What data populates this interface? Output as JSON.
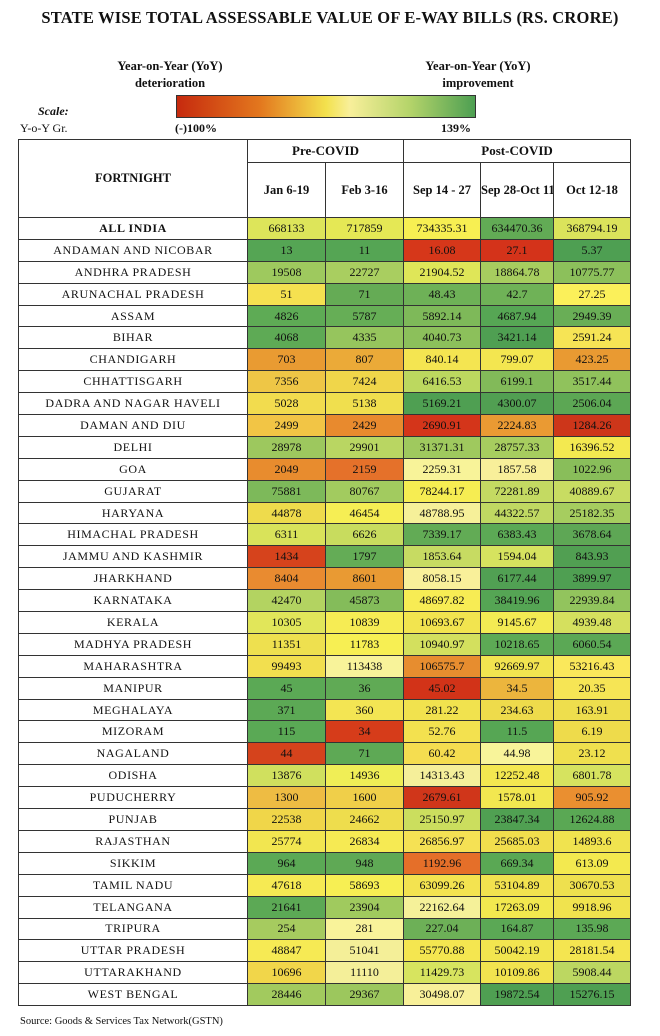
{
  "title": "STATE WISE TOTAL ASSESSABLE VALUE OF E-WAY BILLS (RS. CRORE)",
  "legend": {
    "left_line1": "Year-on-Year (YoY)",
    "left_line2": "deterioration",
    "right_line1": "Year-on-Year (YoY)",
    "right_line2": "improvement",
    "scale": "Scale:",
    "yoy": "Y-o-Y Gr.",
    "min": "(-)100%",
    "max": "139%"
  },
  "table": {
    "groups": [
      "Pre-COVID",
      "Post-COVID"
    ],
    "row_header": "FORTNIGHT",
    "columns": [
      "Jan 6-19",
      "Feb 3-16",
      "Sep 14 - 27",
      "Sep 28-Oct 11",
      "Oct 12-18"
    ],
    "rows": [
      {
        "state": "ALL INDIA",
        "values": [
          "668133",
          "717859",
          "734335.31",
          "634470.36",
          "368794.19"
        ],
        "colors": [
          "#dde55a",
          "#e5e855",
          "#f7ef52",
          "#62ab55",
          "#dbe35b"
        ]
      },
      {
        "state": "ANDAMAN AND NICOBAR",
        "values": [
          "13",
          "11",
          "16.08",
          "27.1",
          "5.37"
        ],
        "colors": [
          "#55a554",
          "#55a554",
          "#d6371a",
          "#d4331a",
          "#4e9f52"
        ]
      },
      {
        "state": "ANDHRA PRADESH",
        "values": [
          "19508",
          "22727",
          "21904.52",
          "18864.78",
          "10775.77"
        ],
        "colors": [
          "#9ec95e",
          "#a9ce60",
          "#dfe658",
          "#a7cd5f",
          "#8cc05b"
        ]
      },
      {
        "state": "ARUNACHAL PRADESH",
        "values": [
          "51",
          "71",
          "48.43",
          "42.7",
          "27.25"
        ],
        "colors": [
          "#f5e150",
          "#65ab55",
          "#6eb157",
          "#6fb257",
          "#fbf05a"
        ]
      },
      {
        "state": "ASSAM",
        "values": [
          "4826",
          "5787",
          "5892.14",
          "4687.94",
          "2949.39"
        ],
        "colors": [
          "#5eab55",
          "#66ae56",
          "#7eb959",
          "#56a654",
          "#69ae56"
        ]
      },
      {
        "state": "BIHAR",
        "values": [
          "4068",
          "4335",
          "4040.73",
          "3421.14",
          "2591.24"
        ],
        "colors": [
          "#5eaa55",
          "#96c55d",
          "#8cc05b",
          "#4f9f52",
          "#f6e455"
        ]
      },
      {
        "state": "CHANDIGARH",
        "values": [
          "703",
          "807",
          "840.14",
          "799.07",
          "423.25"
        ],
        "colors": [
          "#e99b32",
          "#ebaa38",
          "#f4e551",
          "#f3e650",
          "#e99a32"
        ]
      },
      {
        "state": "CHHATTISGARH",
        "values": [
          "7356",
          "7424",
          "6416.53",
          "6199.1",
          "3517.44"
        ],
        "colors": [
          "#eec646",
          "#f0d64a",
          "#bcd85f",
          "#82ba59",
          "#90c25c"
        ]
      },
      {
        "state": "DADRA AND NAGAR HAVELI",
        "values": [
          "5028",
          "5138",
          "5169.21",
          "4300.07",
          "2506.04"
        ],
        "colors": [
          "#f2dc4e",
          "#f0df4e",
          "#4f9f52",
          "#519f52",
          "#5ca754"
        ]
      },
      {
        "state": "DAMAN AND DIU",
        "values": [
          "2499",
          "2429",
          "2690.91",
          "2224.83",
          "1284.26"
        ],
        "colors": [
          "#f2c545",
          "#e88a2e",
          "#d4351a",
          "#ea9a33",
          "#cd361a"
        ]
      },
      {
        "state": "DELHI",
        "values": [
          "28978",
          "29901",
          "31371.31",
          "28757.33",
          "16396.52"
        ],
        "colors": [
          "#9dc85e",
          "#b9d662",
          "#9fc95e",
          "#a7cd5f",
          "#f3e950"
        ]
      },
      {
        "state": "GOA",
        "values": [
          "2049",
          "2159",
          "2259.31",
          "1857.58",
          "1022.96"
        ],
        "colors": [
          "#e88c2e",
          "#e5712a",
          "#f8f399",
          "#f8ef9a",
          "#89be5a"
        ]
      },
      {
        "state": "GUJARAT",
        "values": [
          "75881",
          "80767",
          "78244.17",
          "72281.89",
          "40889.67"
        ],
        "colors": [
          "#7db95a",
          "#a2cb5f",
          "#f6ed52",
          "#c4da62",
          "#c8dc62"
        ]
      },
      {
        "state": "HARYANA",
        "values": [
          "44878",
          "46454",
          "48788.95",
          "44322.57",
          "25182.35"
        ],
        "colors": [
          "#eedb4c",
          "#f6ee54",
          "#f6f099",
          "#c0d862",
          "#a6cd5f"
        ]
      },
      {
        "state": "HIMACHAL PRADESH",
        "values": [
          "6311",
          "6626",
          "7339.17",
          "6383.43",
          "3678.64"
        ],
        "colors": [
          "#d9e35a",
          "#c8dc5e",
          "#62ab55",
          "#5ca955",
          "#5ea755"
        ]
      },
      {
        "state": "JAMMU AND KASHMIR",
        "values": [
          "1434",
          "1797",
          "1853.64",
          "1594.04",
          "843.93"
        ],
        "colors": [
          "#d6431c",
          "#64ac56",
          "#c7db62",
          "#d6e35f",
          "#519f52"
        ]
      },
      {
        "state": "JHARKHAND",
        "values": [
          "8404",
          "8601",
          "8058.15",
          "6177.44",
          "3899.97"
        ],
        "colors": [
          "#e98b30",
          "#e99a33",
          "#f9f09a",
          "#51a053",
          "#4f9f52"
        ]
      },
      {
        "state": "KARNATAKA",
        "values": [
          "42470",
          "45873",
          "48697.82",
          "38419.96",
          "22939.84"
        ],
        "colors": [
          "#b3d361",
          "#84bc5a",
          "#f7ec54",
          "#55a554",
          "#92c45d"
        ]
      },
      {
        "state": "KERALA",
        "values": [
          "10305",
          "10839",
          "10693.67",
          "9145.67",
          "4939.48"
        ],
        "colors": [
          "#e1e65a",
          "#f6ec54",
          "#f2e44f",
          "#f3eb53",
          "#d5e05e"
        ]
      },
      {
        "state": "MADHYA PRADESH",
        "values": [
          "11351",
          "11783",
          "10940.97",
          "10218.65",
          "6060.54"
        ],
        "colors": [
          "#eee04f",
          "#f7ef53",
          "#d3e05e",
          "#5daa55",
          "#5ba855"
        ]
      },
      {
        "state": "MAHARASHTRA",
        "values": [
          "99493",
          "113438",
          "106575.7",
          "92669.97",
          "53216.43"
        ],
        "colors": [
          "#f2df4f",
          "#f8f39a",
          "#e78d2f",
          "#f2e450",
          "#fae85b"
        ]
      },
      {
        "state": "MANIPUR",
        "values": [
          "45",
          "36",
          "45.02",
          "34.5",
          "20.35"
        ],
        "colors": [
          "#5ba955",
          "#60aa55",
          "#d23318",
          "#ecb53d",
          "#f6e555"
        ]
      },
      {
        "state": "MEGHALAYA",
        "values": [
          "371",
          "360",
          "281.22",
          "234.63",
          "163.91"
        ],
        "colors": [
          "#5ca955",
          "#f3e553",
          "#f1e24e",
          "#eedb4b",
          "#eede4d"
        ]
      },
      {
        "state": "MIZORAM",
        "values": [
          "115",
          "34",
          "52.76",
          "11.5",
          "6.19"
        ],
        "colors": [
          "#5aa955",
          "#d63c1a",
          "#f3e14f",
          "#56a654",
          "#eedb4b"
        ]
      },
      {
        "state": "NAGALAND",
        "values": [
          "44",
          "71",
          "60.42",
          "44.98",
          "23.12"
        ],
        "colors": [
          "#d5431c",
          "#5ea955",
          "#f5dd50",
          "#f8f49a",
          "#efe04e"
        ]
      },
      {
        "state": "ODISHA",
        "values": [
          "13876",
          "14936",
          "14313.43",
          "12252.48",
          "6801.78"
        ],
        "colors": [
          "#d0e05e",
          "#f0ee56",
          "#f5ef9a",
          "#f3e750",
          "#d6e35f"
        ]
      },
      {
        "state": "PUDUCHERRY",
        "values": [
          "1300",
          "1600",
          "2679.61",
          "1578.01",
          "905.92"
        ],
        "colors": [
          "#eebc43",
          "#f0cf49",
          "#d0361a",
          "#f2e750",
          "#ea8f30"
        ]
      },
      {
        "state": "PUNJAB",
        "values": [
          "22538",
          "24662",
          "25150.97",
          "23847.34",
          "12624.88"
        ],
        "colors": [
          "#f0d649",
          "#eedd4d",
          "#cbde5e",
          "#50a052",
          "#5aa854"
        ]
      },
      {
        "state": "RAJASTHAN",
        "values": [
          "25774",
          "26834",
          "26856.97",
          "25685.03",
          "14893.6"
        ],
        "colors": [
          "#f2e650",
          "#f6ea53",
          "#f5e154",
          "#f1de4d",
          "#f0e34f"
        ]
      },
      {
        "state": "SIKKIM",
        "values": [
          "964",
          "948",
          "1192.96",
          "669.34",
          "613.09"
        ],
        "colors": [
          "#5ba955",
          "#5fa955",
          "#e56f29",
          "#5aa854",
          "#f3e94f"
        ]
      },
      {
        "state": "TAMIL NADU",
        "values": [
          "47618",
          "58693",
          "63099.26",
          "53104.89",
          "30670.53"
        ],
        "colors": [
          "#f6ea53",
          "#f7ef53",
          "#f3e350",
          "#f2e24f",
          "#eee04e"
        ]
      },
      {
        "state": "TELANGANA",
        "values": [
          "21641",
          "23904",
          "22162.64",
          "17263.09",
          "9918.96"
        ],
        "colors": [
          "#5ca955",
          "#a0ca5e",
          "#f5f199",
          "#f2e84f",
          "#f0e34e"
        ]
      },
      {
        "state": "TRIPURA",
        "values": [
          "254",
          "281",
          "227.04",
          "164.87",
          "135.98"
        ],
        "colors": [
          "#a6cb5f",
          "#f9f39a",
          "#6db057",
          "#5ba855",
          "#5ca955"
        ]
      },
      {
        "state": "UTTAR PRADESH",
        "values": [
          "48847",
          "51041",
          "55770.88",
          "50042.19",
          "28181.54"
        ],
        "colors": [
          "#f6ea54",
          "#f4ef98",
          "#f4e650",
          "#f2e54f",
          "#f4e550"
        ]
      },
      {
        "state": "UTTARAKHAND",
        "values": [
          "10696",
          "11110",
          "11429.73",
          "10109.86",
          "5908.44"
        ],
        "colors": [
          "#f1d64a",
          "#f4ef99",
          "#d7e45f",
          "#f2e34f",
          "#bcd761"
        ]
      },
      {
        "state": "WEST BENGAL",
        "values": [
          "28446",
          "29367",
          "30498.07",
          "19872.54",
          "15276.15"
        ],
        "colors": [
          "#a2ca5e",
          "#9cc75d",
          "#f8f099",
          "#4f9f52",
          "#4f9f52"
        ]
      }
    ]
  },
  "source": "Source: Goods & Services Tax Network(GSTN)"
}
